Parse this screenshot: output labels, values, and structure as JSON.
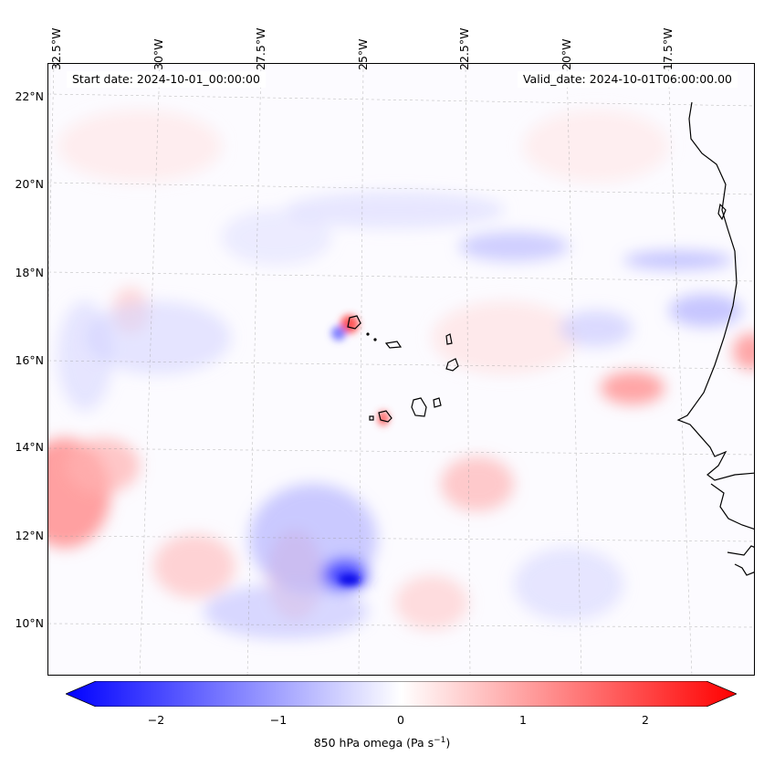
{
  "map": {
    "start_date": "Start date: 2024-10-01_00:00:00",
    "valid_date": "Valid_date: 2024-10-01T06:00:00.00",
    "lon_labels": [
      "32.5°W",
      "30°W",
      "27.5°W",
      "25°W",
      "22.5°W",
      "20°W",
      "17.5°W"
    ],
    "lat_labels": [
      "22°N",
      "20°N",
      "18°N",
      "16°N",
      "14°N",
      "12°N",
      "10°N"
    ],
    "colormap": [
      "#0000ff",
      "#ffffff",
      "#ff0000"
    ],
    "coastline_color": "#000000",
    "gridlines": true
  },
  "colorbar": {
    "ticks": [
      "−2",
      "−1",
      "0",
      "1",
      "2"
    ],
    "tick_values": [
      -2,
      -1,
      0,
      1,
      2
    ],
    "range": [
      -2.5,
      2.5
    ],
    "label_main": "850 hPa omega (Pa s",
    "label_sup": "−1",
    "label_end": ")"
  }
}
